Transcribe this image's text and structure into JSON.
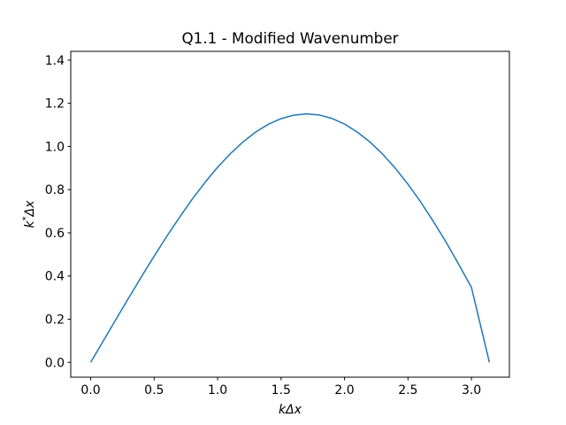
{
  "chart_data": {
    "type": "line",
    "title": "Q1.1 - Modified Wavenumber",
    "xlabel": "kΔx",
    "ylabel_base": "k",
    "ylabel_sup": "*",
    "ylabel_tail": "Δx",
    "xlim": [
      -0.157,
      3.299
    ],
    "ylim": [
      -0.0686,
      1.4406
    ],
    "xticks": [
      0.0,
      0.5,
      1.0,
      1.5,
      2.0,
      2.5,
      3.0
    ],
    "xtick_labels": [
      "0.0",
      "0.5",
      "1.0",
      "1.5",
      "2.0",
      "2.5",
      "3.0"
    ],
    "yticks": [
      0.0,
      0.2,
      0.4,
      0.6,
      0.8,
      1.0,
      1.2,
      1.4
    ],
    "ytick_labels": [
      "0.0",
      "0.2",
      "0.4",
      "0.6",
      "0.8",
      "1.0",
      "1.2",
      "1.4"
    ],
    "grid": false,
    "series": [
      {
        "color": "#1f77b4",
        "x": [
          0.0,
          0.1,
          0.2,
          0.3,
          0.4,
          0.5,
          0.6,
          0.7,
          0.8,
          0.9,
          1.0,
          1.1,
          1.2,
          1.3,
          1.4,
          1.5,
          1.6,
          1.7,
          1.8,
          1.9,
          2.0,
          2.1,
          2.2,
          2.3,
          2.4,
          2.5,
          2.6,
          2.7,
          2.8,
          2.9,
          3.0,
          3.14159
        ],
        "y": [
          0.0,
          0.1,
          0.2,
          0.299,
          0.397,
          0.492,
          0.584,
          0.672,
          0.756,
          0.833,
          0.904,
          0.966,
          1.021,
          1.067,
          1.103,
          1.129,
          1.145,
          1.151,
          1.146,
          1.13,
          1.104,
          1.067,
          1.021,
          0.965,
          0.899,
          0.825,
          0.743,
          0.653,
          0.557,
          0.454,
          0.347,
          0.0
        ]
      }
    ]
  }
}
